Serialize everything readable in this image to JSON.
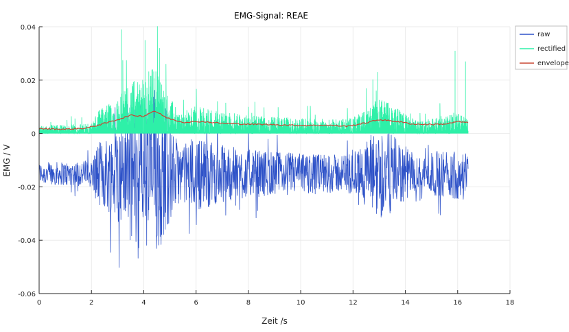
{
  "chart_data": {
    "type": "line",
    "title": "EMG-Signal: REAE",
    "xlabel": "Zeit /s",
    "ylabel": "EMG / V",
    "xlim": [
      0,
      18
    ],
    "ylim": [
      -0.06,
      0.04
    ],
    "x_ticks": [
      0,
      2,
      4,
      6,
      8,
      10,
      12,
      14,
      16,
      18
    ],
    "x_tick_labels": [
      "0",
      "2",
      "4",
      "6",
      "8",
      "10",
      "12",
      "14",
      "16",
      "18"
    ],
    "y_ticks": [
      -0.06,
      -0.04,
      -0.02,
      0,
      0.02,
      0.04
    ],
    "y_tick_labels": [
      "-0.06",
      "-0.04",
      "-0.02",
      "0",
      "0.02",
      "0.04"
    ],
    "grid": true,
    "legend_position": "outside top-right",
    "x_end": 16.4,
    "series": [
      {
        "name": "raw",
        "color": "#2e52c8",
        "baseline": -0.015,
        "amplitude_envelope": [
          {
            "t": 0.0,
            "amp": 0.004
          },
          {
            "t": 2.0,
            "amp": 0.005
          },
          {
            "t": 2.2,
            "amp": 0.011
          },
          {
            "t": 3.0,
            "amp": 0.018
          },
          {
            "t": 3.4,
            "amp": 0.025
          },
          {
            "t": 4.0,
            "amp": 0.03
          },
          {
            "t": 4.4,
            "amp": 0.034
          },
          {
            "t": 5.0,
            "amp": 0.018
          },
          {
            "t": 5.4,
            "amp": 0.01
          },
          {
            "t": 6.0,
            "amp": 0.014
          },
          {
            "t": 7.0,
            "amp": 0.011
          },
          {
            "t": 8.0,
            "amp": 0.009
          },
          {
            "t": 9.5,
            "amp": 0.008
          },
          {
            "t": 11.5,
            "amp": 0.007
          },
          {
            "t": 12.2,
            "amp": 0.009
          },
          {
            "t": 13.0,
            "amp": 0.018
          },
          {
            "t": 13.8,
            "amp": 0.012
          },
          {
            "t": 14.5,
            "amp": 0.006
          },
          {
            "t": 15.0,
            "amp": 0.008
          },
          {
            "t": 16.0,
            "amp": 0.01
          },
          {
            "t": 16.4,
            "amp": 0.008
          }
        ]
      },
      {
        "name": "rectified",
        "color": "#2ef0a8",
        "peaks": [
          {
            "t": 3.15,
            "v": 0.039
          },
          {
            "t": 4.05,
            "v": 0.035
          },
          {
            "t": 4.6,
            "v": 0.032
          },
          {
            "t": 12.95,
            "v": 0.023
          },
          {
            "t": 15.9,
            "v": 0.031
          },
          {
            "t": 16.3,
            "v": 0.027
          }
        ]
      },
      {
        "name": "envelope",
        "color": "#c84632",
        "points": [
          {
            "t": 0.0,
            "v": 0.0018
          },
          {
            "t": 1.0,
            "v": 0.0016
          },
          {
            "t": 1.8,
            "v": 0.002
          },
          {
            "t": 2.4,
            "v": 0.0035
          },
          {
            "t": 3.0,
            "v": 0.0052
          },
          {
            "t": 3.5,
            "v": 0.0068
          },
          {
            "t": 4.0,
            "v": 0.0065
          },
          {
            "t": 4.4,
            "v": 0.0085
          },
          {
            "t": 4.9,
            "v": 0.0058
          },
          {
            "t": 5.5,
            "v": 0.0042
          },
          {
            "t": 6.2,
            "v": 0.0045
          },
          {
            "t": 7.0,
            "v": 0.0038
          },
          {
            "t": 8.0,
            "v": 0.0035
          },
          {
            "t": 9.0,
            "v": 0.0033
          },
          {
            "t": 10.0,
            "v": 0.003
          },
          {
            "t": 11.0,
            "v": 0.0031
          },
          {
            "t": 11.8,
            "v": 0.0027
          },
          {
            "t": 12.5,
            "v": 0.004
          },
          {
            "t": 13.0,
            "v": 0.0052
          },
          {
            "t": 13.7,
            "v": 0.0045
          },
          {
            "t": 14.3,
            "v": 0.0035
          },
          {
            "t": 15.0,
            "v": 0.0034
          },
          {
            "t": 15.6,
            "v": 0.0036
          },
          {
            "t": 16.0,
            "v": 0.0045
          },
          {
            "t": 16.4,
            "v": 0.004
          }
        ]
      }
    ]
  }
}
